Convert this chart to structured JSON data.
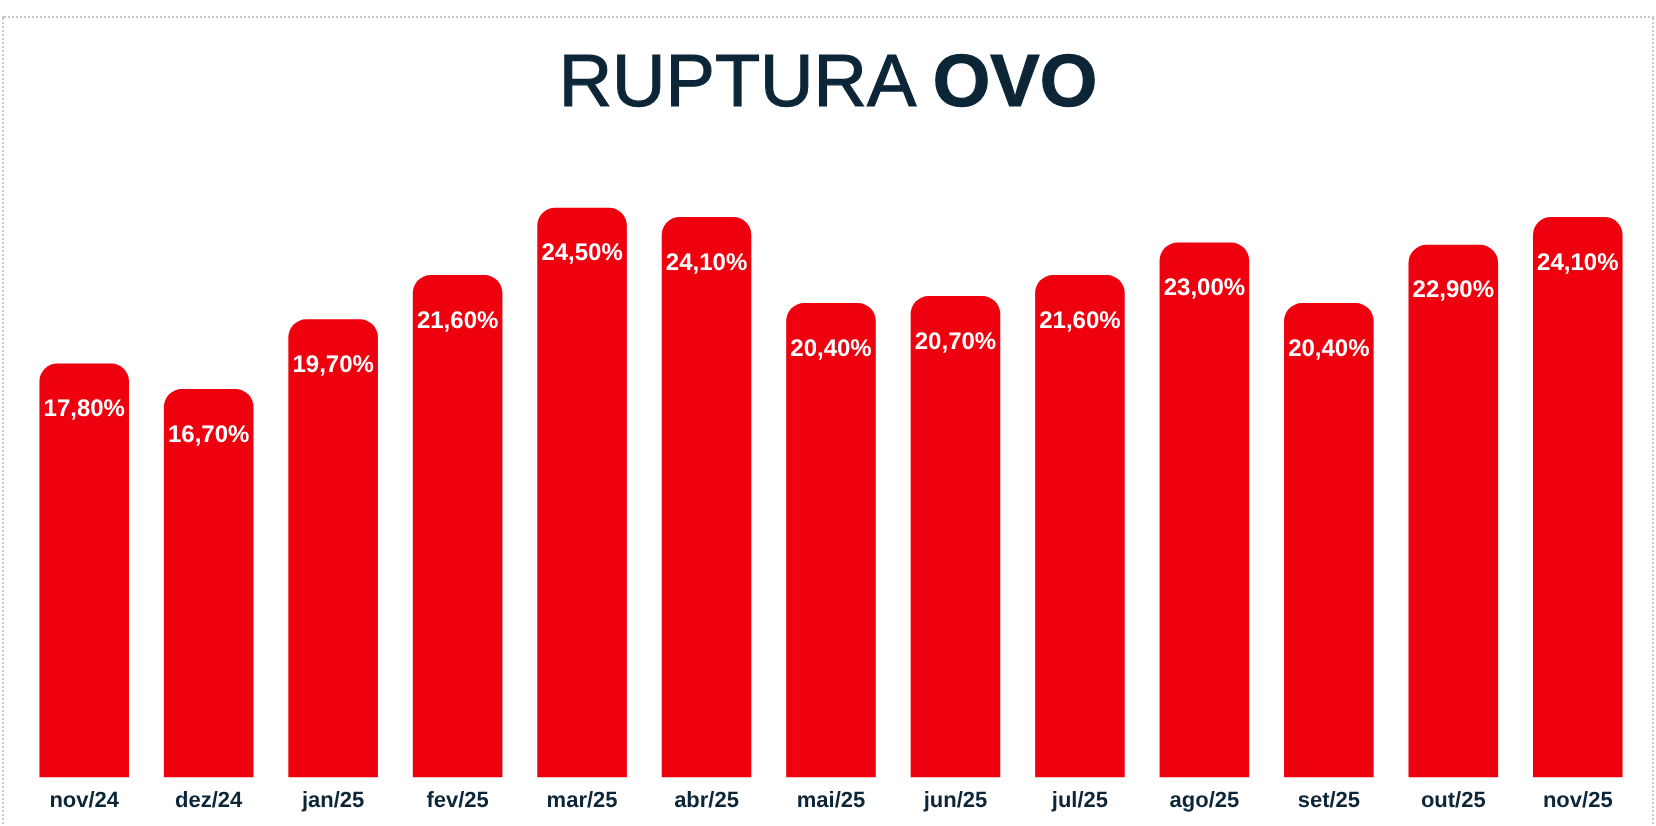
{
  "chart_data": {
    "type": "bar",
    "title": "RUPTURA OVO",
    "categories": [
      "nov/24",
      "dez/24",
      "jan/25",
      "fev/25",
      "mar/25",
      "abr/25",
      "mai/25",
      "jun/25",
      "jul/25",
      "ago/25",
      "set/25",
      "out/25",
      "nov/25"
    ],
    "values": [
      17.8,
      16.7,
      19.7,
      21.6,
      24.5,
      24.1,
      20.4,
      20.7,
      21.6,
      23.0,
      20.4,
      22.9,
      24.1
    ],
    "value_labels": [
      "17,80%",
      "16,70%",
      "19,70%",
      "21,60%",
      "24,50%",
      "24,10%",
      "20,40%",
      "20,70%",
      "21,60%",
      "23,00%",
      "20,40%",
      "22,90%",
      "24,10%"
    ],
    "color": "#ef000f",
    "grid": false,
    "legend": false
  }
}
